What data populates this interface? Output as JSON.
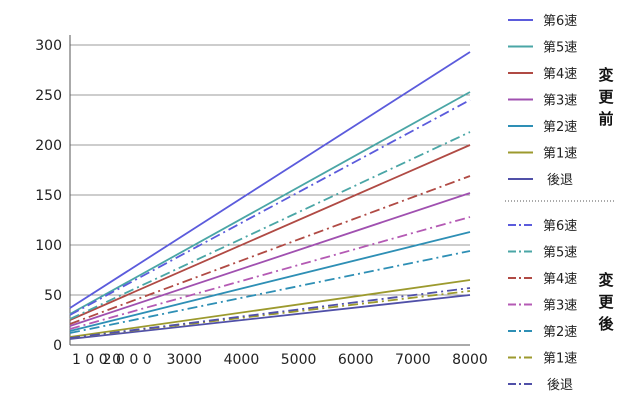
{
  "chart_data": {
    "type": "line",
    "xlim": [
      1000,
      8000
    ],
    "ylim": [
      0,
      300
    ],
    "x_ticks": [
      {
        "value": 1000,
        "label": "1 0 0 0"
      },
      {
        "value": 2000,
        "label": "2 0 0 0"
      },
      {
        "value": 3000,
        "label": "3000"
      },
      {
        "value": 4000,
        "label": "4000"
      },
      {
        "value": 5000,
        "label": "5000"
      },
      {
        "value": 6000,
        "label": "6000"
      },
      {
        "value": 7000,
        "label": "7000"
      },
      {
        "value": 8000,
        "label": "8000"
      }
    ],
    "y_ticks": [
      0,
      50,
      100,
      150,
      200,
      250,
      300
    ],
    "grid": "horizontal",
    "legend_placement": "right",
    "x": [
      1000,
      8000
    ],
    "groups": [
      {
        "name": "変更前",
        "line_style": "solid",
        "series": [
          {
            "name": "第6速",
            "color": "#5b5bdc",
            "values": [
              37,
              293
            ]
          },
          {
            "name": "第5速",
            "color": "#4aa6a6",
            "values": [
              31,
              253
            ]
          },
          {
            "name": "第4速",
            "color": "#b04a44",
            "values": [
              25,
              200
            ]
          },
          {
            "name": "第3速",
            "color": "#a050b0",
            "values": [
              19,
              152
            ]
          },
          {
            "name": "第2速",
            "color": "#2e8fb5",
            "values": [
              14,
              113
            ]
          },
          {
            "name": "第1速",
            "color": "#9c9a2e",
            "values": [
              8,
              65
            ]
          },
          {
            "name": "後退",
            "color": "#5050a8",
            "values": [
              6,
              50
            ]
          }
        ]
      },
      {
        "name": "変更後",
        "line_style": "dashdot",
        "series": [
          {
            "name": "第6速",
            "color": "#5b5bdc",
            "values": [
              30,
              245
            ]
          },
          {
            "name": "第5速",
            "color": "#4aa6a6",
            "values": [
              26,
              213
            ]
          },
          {
            "name": "第4速",
            "color": "#b04a44",
            "values": [
              21,
              169
            ]
          },
          {
            "name": "第3速",
            "color": "#b45ab4",
            "values": [
              16,
              128
            ]
          },
          {
            "name": "第2速",
            "color": "#2e8fb5",
            "values": [
              12,
              94
            ]
          },
          {
            "name": "第1速",
            "color": "#9c9a2e",
            "values": [
              7,
              54
            ]
          },
          {
            "name": "後退",
            "color": "#5050a8",
            "values": [
              7,
              57
            ]
          }
        ]
      }
    ]
  }
}
